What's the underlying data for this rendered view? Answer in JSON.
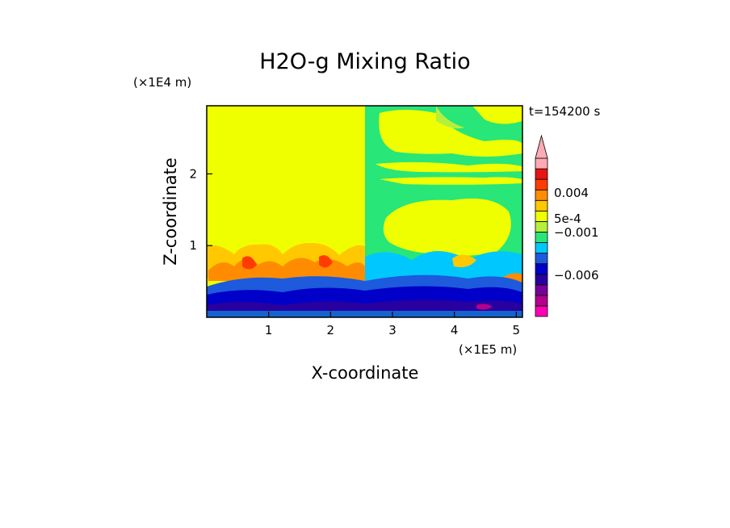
{
  "chart_data": {
    "type": "heatmap",
    "title": "H2O-g Mixing Ratio",
    "xlabel": "X-coordinate",
    "ylabel": "Z-coordinate",
    "x_unit": "(×1E5 m)",
    "y_unit": "(×1E4 m)",
    "time_label": "t=154200 s",
    "xlim": [
      0,
      5.1
    ],
    "ylim": [
      0,
      2.95
    ],
    "x_ticks": [
      1,
      2,
      3,
      4,
      5
    ],
    "y_ticks": [
      1,
      2
    ],
    "colorbar": {
      "colors": [
        "#ff00b4",
        "#b4008c",
        "#78009b",
        "#2800a0",
        "#0000c8",
        "#1e5adc",
        "#00c8ff",
        "#28e678",
        "#b4f03c",
        "#f0ff00",
        "#ffc800",
        "#ff8c00",
        "#ff3c00",
        "#e61414",
        "#ffaab4"
      ],
      "labels": [
        "0.004",
        "5e-4",
        "−0.001",
        "−0.006"
      ]
    },
    "regions": [
      {
        "label": "upper-left",
        "x": [
          0,
          2.6
        ],
        "z": [
          1.0,
          2.95
        ],
        "color": "#f0ff00"
      },
      {
        "label": "upper-right",
        "x": [
          2.6,
          5.1
        ],
        "z": [
          0.75,
          2.95
        ],
        "color": "#28e678"
      },
      {
        "label": "lower-band",
        "x": [
          0,
          5.1
        ],
        "z": [
          0,
          0.6
        ],
        "color": "#0000c8"
      }
    ]
  }
}
